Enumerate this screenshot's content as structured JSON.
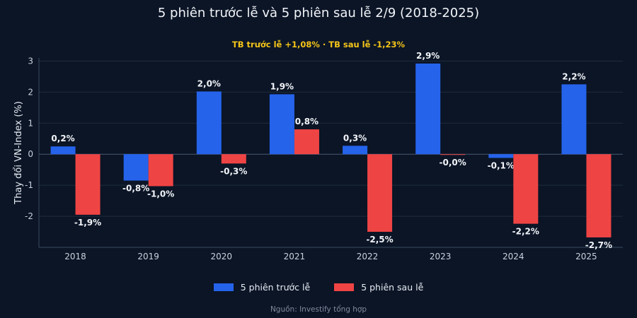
{
  "title": "5 phiên trước lễ và 5 phiên sau lễ 2/9 (2018-2025)",
  "subtitle": "TB trước lễ +1,08% · TB sau lễ -1,23%",
  "source": "Nguồn: Investify tổng hợp",
  "colors": {
    "background": "#0b1526",
    "before": "#2563eb",
    "after": "#ef4444",
    "grid": "#1f2b3d",
    "axis": "#3a4a60",
    "subtitle": "#f5c518"
  },
  "chart_data": {
    "type": "bar",
    "title": "5 phiên trước lễ và 5 phiên sau lễ 2/9 (2018-2025)",
    "subtitle": "TB trước lễ +1,08% · TB sau lễ -1,23%",
    "xlabel": "",
    "ylabel": "Thay đổi VN-Index (%)",
    "ylim": [
      -3,
      3.1
    ],
    "yticks": [
      3,
      2,
      1,
      0,
      -1,
      -2
    ],
    "ytick_labels": [
      "3",
      "2",
      "1",
      "0",
      "-1",
      "-2"
    ],
    "categories": [
      "2018",
      "2019",
      "2020",
      "2021",
      "2022",
      "2023",
      "2024",
      "2025"
    ],
    "grid": true,
    "legend_position": "bottom",
    "series": [
      {
        "name": "5 phiên trước lễ",
        "color": "#2563eb",
        "values": [
          0.25,
          -0.85,
          2.02,
          1.93,
          0.27,
          2.92,
          -0.12,
          2.25
        ],
        "labels": [
          "0,2%",
          "-0,8%",
          "2,0%",
          "1,9%",
          "0,3%",
          "2,9%",
          "-0,1%",
          "2,2%"
        ]
      },
      {
        "name": "5 phiên sau lễ",
        "color": "#ef4444",
        "values": [
          -1.95,
          -1.03,
          -0.3,
          0.8,
          -2.5,
          -0.02,
          -2.24,
          -2.68
        ],
        "labels": [
          "-1,9%",
          "-1,0%",
          "-0,3%",
          "0,8%",
          "-2,5%",
          "-0,0%",
          "-2,2%",
          "-2,7%"
        ]
      }
    ]
  }
}
